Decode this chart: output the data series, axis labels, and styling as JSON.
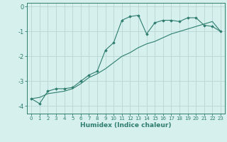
{
  "xlabel": "Humidex (Indice chaleur)",
  "bg_color": "#d6f0ee",
  "grid_color": "#b8d8d4",
  "line_color": "#2e7d6e",
  "xlim": [
    -0.5,
    23.5
  ],
  "ylim": [
    -4.3,
    0.15
  ],
  "yticks": [
    0,
    -1,
    -2,
    -3,
    -4
  ],
  "xticks": [
    0,
    1,
    2,
    3,
    4,
    5,
    6,
    7,
    8,
    9,
    10,
    11,
    12,
    13,
    14,
    15,
    16,
    17,
    18,
    19,
    20,
    21,
    22,
    23
  ],
  "x_jagged": [
    0,
    1,
    2,
    3,
    4,
    5,
    6,
    7,
    8,
    9,
    10,
    11,
    12,
    13,
    14,
    15,
    16,
    17,
    18,
    19,
    20,
    21,
    22,
    23
  ],
  "y_jagged": [
    -3.7,
    -3.9,
    -3.4,
    -3.3,
    -3.3,
    -3.25,
    -3.0,
    -2.75,
    -2.6,
    -1.75,
    -1.45,
    -0.55,
    -0.4,
    -0.35,
    -1.1,
    -0.65,
    -0.55,
    -0.55,
    -0.6,
    -0.45,
    -0.45,
    -0.75,
    -0.8,
    -1.0
  ],
  "x_trend": [
    0,
    1,
    2,
    3,
    4,
    5,
    6,
    7,
    8,
    9,
    10,
    11,
    12,
    13,
    14,
    15,
    16,
    17,
    18,
    19,
    20,
    21,
    22,
    23
  ],
  "y_trend": [
    -3.7,
    -3.65,
    -3.5,
    -3.45,
    -3.4,
    -3.3,
    -3.1,
    -2.85,
    -2.7,
    -2.5,
    -2.25,
    -2.0,
    -1.85,
    -1.65,
    -1.5,
    -1.4,
    -1.25,
    -1.1,
    -1.0,
    -0.9,
    -0.8,
    -0.7,
    -0.6,
    -1.0
  ]
}
